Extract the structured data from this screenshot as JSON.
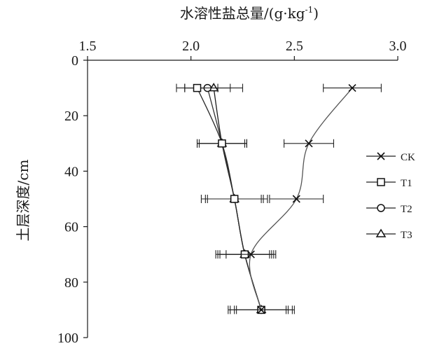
{
  "chart_data": {
    "type": "line",
    "xlabel": "水溶性盐总量/(g·kg",
    "xlabel_sup": "-1",
    "xlabel_tail": ")",
    "ylabel": "土层深度/cm",
    "xlim": [
      1.5,
      3.0
    ],
    "ylim": [
      0,
      100
    ],
    "y_inverted": true,
    "x_axis_position": "top",
    "x_ticks": [
      "1.5",
      "2.0",
      "2.5",
      "3.0"
    ],
    "y_ticks": [
      "0",
      "20",
      "40",
      "60",
      "80",
      "100"
    ],
    "grid": false,
    "legend_position": "right",
    "series": [
      {
        "name": "CK",
        "marker": "x",
        "depth": [
          10,
          30,
          50,
          70,
          90
        ],
        "value": [
          2.78,
          2.57,
          2.51,
          2.29,
          2.34
        ],
        "error": [
          0.14,
          0.12,
          0.13,
          0.12,
          0.16
        ]
      },
      {
        "name": "T1",
        "marker": "square",
        "depth": [
          10,
          30,
          50,
          70,
          90
        ],
        "value": [
          2.03,
          2.15,
          2.21,
          2.26,
          2.34
        ],
        "error": [
          0.1,
          0.12,
          0.14,
          0.13,
          0.13
        ]
      },
      {
        "name": "T2",
        "marker": "circle",
        "depth": [
          10,
          30,
          50,
          70,
          90
        ],
        "value": [
          2.08,
          2.15,
          2.21,
          2.26,
          2.34
        ],
        "error": [
          0.11,
          0.11,
          0.13,
          0.12,
          0.12
        ]
      },
      {
        "name": "T3",
        "marker": "triangle",
        "depth": [
          10,
          30,
          50,
          70,
          90
        ],
        "value": [
          2.11,
          2.15,
          2.21,
          2.26,
          2.34
        ],
        "error": [
          0.14,
          0.12,
          0.16,
          0.14,
          0.15
        ]
      }
    ]
  }
}
